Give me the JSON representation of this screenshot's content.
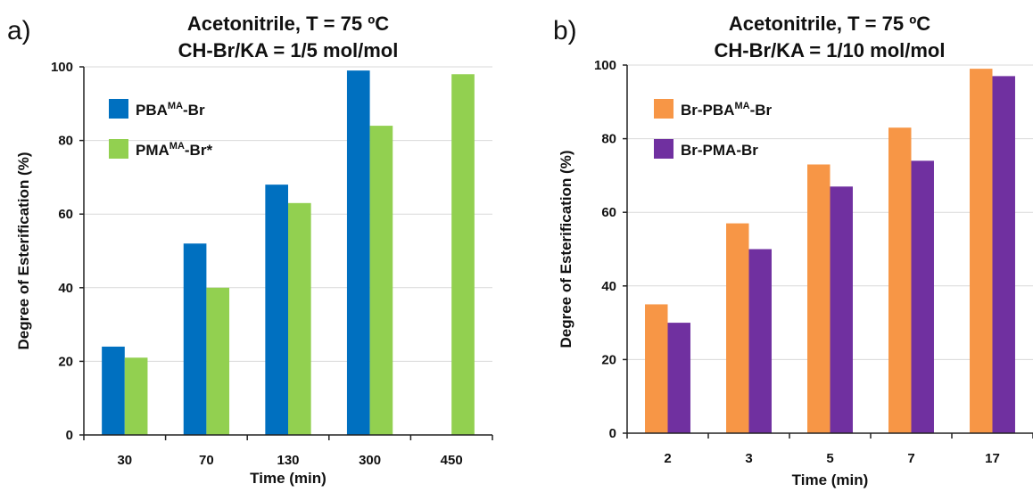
{
  "chart_data": [
    {
      "panel": "a)",
      "type": "bar",
      "title": [
        "Acetonitrile, T = 75 ºC",
        "CH-Br/KA = 1/5 mol/mol"
      ],
      "xlabel": "Time (min)",
      "ylabel": "Degree of Esterification (%)",
      "ylim": [
        0,
        100
      ],
      "yticks": [
        0,
        20,
        40,
        60,
        80,
        100
      ],
      "categories": [
        "30",
        "70",
        "130",
        "300",
        "450"
      ],
      "legend_position": "top-left",
      "grid": true,
      "series": [
        {
          "name": "PBA",
          "sup": "MA",
          "suffix": "-Br",
          "color": "#0070c0",
          "values": [
            24,
            52,
            68,
            99,
            null
          ]
        },
        {
          "name": "PMA",
          "sup": "MA",
          "suffix": "-Br*",
          "color": "#92d050",
          "values": [
            21,
            40,
            63,
            84,
            98
          ]
        }
      ]
    },
    {
      "panel": "b)",
      "type": "bar",
      "title": [
        "Acetonitrile, T = 75 ºC",
        "CH-Br/KA = 1/10 mol/mol"
      ],
      "xlabel": "Time (min)",
      "ylabel": "Degree of Esterification (%)",
      "ylim": [
        0,
        100
      ],
      "yticks": [
        0,
        20,
        40,
        60,
        80,
        100
      ],
      "categories": [
        "2",
        "3",
        "5",
        "7",
        "17"
      ],
      "legend_position": "top-left",
      "grid": true,
      "series": [
        {
          "name": "Br-PBA",
          "sup": "MA",
          "suffix": "-Br",
          "color": "#f79646",
          "values": [
            35,
            57,
            73,
            83,
            99
          ]
        },
        {
          "name": "Br-PMA-Br",
          "sup": "",
          "suffix": "",
          "color": "#7030a0",
          "values": [
            30,
            50,
            67,
            74,
            97
          ]
        }
      ]
    }
  ]
}
